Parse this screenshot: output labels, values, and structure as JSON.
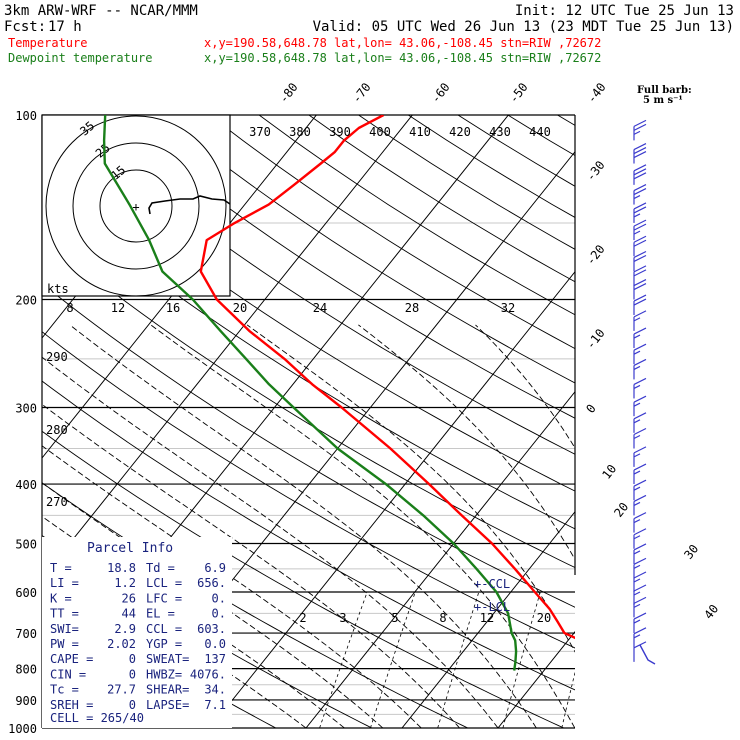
{
  "header": {
    "model": "3km ARW-WRF -- NCAR/MMM",
    "init": "Init: 12 UTC Tue 25 Jun 13",
    "fcst_label": "Fcst:",
    "fcst_value": "17 h",
    "valid": "Valid: 05 UTC Wed 26 Jun 13 (23 MDT Tue 25 Jun 13)",
    "temp_label": "Temperature",
    "dew_label": "Dewpoint temperature",
    "temp_loc": "x,y=190.58,648.78    lat,lon= 43.06,-108.45   stn=RIW ,72672",
    "dew_loc": "x,y=190.58,648.78    lat,lon= 43.06,-108.45   stn=RIW ,72672"
  },
  "colors": {
    "temperature": "#ff0000",
    "dewpoint": "#1a7f1a",
    "parcel_info": "#1a237e",
    "barbs": "#3a3acd",
    "grid": "#000000",
    "light_grid": "#c8c8c8"
  },
  "chart_data": {
    "type": "line",
    "title": "",
    "xlabel": "",
    "ylabel": "",
    "y_scale": "log-pressure",
    "ylim": [
      1000,
      100
    ],
    "pressure_ticks": [
      "100",
      "200",
      "300",
      "400",
      "500",
      "600",
      "700",
      "800",
      "900",
      "1000"
    ],
    "isotherm_labels_top": [
      "-80",
      "-70",
      "-60",
      "-50",
      "-40"
    ],
    "isotherm_labels_right": [
      "-30",
      "-20",
      "-10",
      "0",
      "10",
      "20",
      "30",
      "40"
    ],
    "theta_labels": [
      "370",
      "380",
      "390",
      "400",
      "410",
      "420",
      "430",
      "440"
    ],
    "theta_labels_left": [
      "290",
      "280",
      "270"
    ],
    "mixing_ratio_labels": [
      "2",
      "3",
      "5",
      "8",
      "12",
      "20"
    ],
    "hodograph": {
      "rings": [
        "35",
        "25",
        "15"
      ],
      "speed_ticks": [
        "8",
        "12",
        "16",
        "20",
        "24",
        "28",
        "32"
      ],
      "units": "kts"
    },
    "barb_legend": {
      "title": "Full barb:",
      "value": "5 m s⁻¹"
    },
    "level_markers": [
      "CCL",
      "LCL"
    ],
    "series": [
      {
        "name": "Temperature",
        "color": "#ff0000",
        "p": [
          806,
          780,
          760,
          730,
          700,
          670,
          640,
          600,
          550,
          500,
          450,
          400,
          350,
          300,
          275,
          250,
          225,
          200,
          180,
          160,
          150,
          140,
          130,
          120,
          115,
          110,
          105,
          100
        ],
        "t": [
          18.8,
          19.0,
          16.0,
          12.5,
          9.0,
          7.3,
          5.5,
          2.5,
          -1.5,
          -6.0,
          -11.5,
          -17.5,
          -24.5,
          -33.0,
          -38.0,
          -43.0,
          -49.0,
          -55.0,
          -59.0,
          -61.0,
          -59.5,
          -57.5,
          -56.5,
          -55.5,
          -55.0,
          -55.0,
          -54.5,
          -53.0
        ]
      },
      {
        "name": "Dewpoint temperature",
        "color": "#1a7f1a",
        "p": [
          806,
          780,
          750,
          720,
          700,
          650,
          600,
          550,
          500,
          450,
          400,
          350,
          300,
          275,
          250,
          225,
          200,
          180,
          160,
          140,
          120,
          110,
          100
        ],
        "t": [
          6.9,
          6.3,
          5.5,
          4.5,
          3.5,
          1.5,
          -1.5,
          -5.5,
          -10.0,
          -15.5,
          -22.0,
          -30.0,
          -38.0,
          -42.5,
          -47.0,
          -52.0,
          -57.5,
          -63.0,
          -67.0,
          -72.0,
          -78.0,
          -80.0,
          -82.0
        ]
      }
    ]
  },
  "parcel_info": {
    "title": "Parcel Info",
    "rows": [
      [
        "T  =",
        "18.8",
        "Td  =",
        "6.9"
      ],
      [
        "LI =",
        "1.2",
        "LCL =",
        "656."
      ],
      [
        "K  =",
        "26",
        "LFC =",
        "0."
      ],
      [
        "TT =",
        "44",
        "EL  =",
        "0."
      ],
      [
        "SWI=",
        "2.9",
        "CCL =",
        "603."
      ],
      [
        "PW =",
        "2.02",
        "YGP =",
        "0.0"
      ],
      [
        "CAPE =",
        "0",
        "SWEAT=",
        "137"
      ],
      [
        "CIN  =",
        "0",
        "HWBZ=",
        "4076."
      ],
      [
        "Tc   =",
        "27.7",
        "SHEAR=",
        "34."
      ],
      [
        "SREH =",
        "0",
        "LAPSE=",
        "7.1"
      ]
    ],
    "cell": "CELL = 265/40"
  },
  "wind_barbs": [
    {
      "p": 110,
      "spd": 28
    },
    {
      "p": 120,
      "spd": 30
    },
    {
      "p": 130,
      "spd": 30
    },
    {
      "p": 140,
      "spd": 28
    },
    {
      "p": 150,
      "spd": 25
    },
    {
      "p": 160,
      "spd": 25
    },
    {
      "p": 170,
      "spd": 22
    },
    {
      "p": 180,
      "spd": 20
    },
    {
      "p": 190,
      "spd": 20
    },
    {
      "p": 200,
      "spd": 20
    },
    {
      "p": 212,
      "spd": 20
    },
    {
      "p": 225,
      "spd": 18
    },
    {
      "p": 240,
      "spd": 15
    },
    {
      "p": 255,
      "spd": 15
    },
    {
      "p": 270,
      "spd": 15
    },
    {
      "p": 290,
      "spd": 15
    },
    {
      "p": 310,
      "spd": 15
    },
    {
      "p": 330,
      "spd": 15
    },
    {
      "p": 350,
      "spd": 15
    },
    {
      "p": 375,
      "spd": 15
    },
    {
      "p": 400,
      "spd": 15
    },
    {
      "p": 425,
      "spd": 15
    },
    {
      "p": 450,
      "spd": 15
    },
    {
      "p": 480,
      "spd": 15
    },
    {
      "p": 510,
      "spd": 15
    },
    {
      "p": 540,
      "spd": 15
    },
    {
      "p": 570,
      "spd": 15
    },
    {
      "p": 600,
      "spd": 15
    },
    {
      "p": 630,
      "spd": 15
    },
    {
      "p": 660,
      "spd": 15
    },
    {
      "p": 700,
      "spd": 15
    },
    {
      "p": 740,
      "spd": 15
    },
    {
      "p": 780,
      "spd": 10
    }
  ]
}
